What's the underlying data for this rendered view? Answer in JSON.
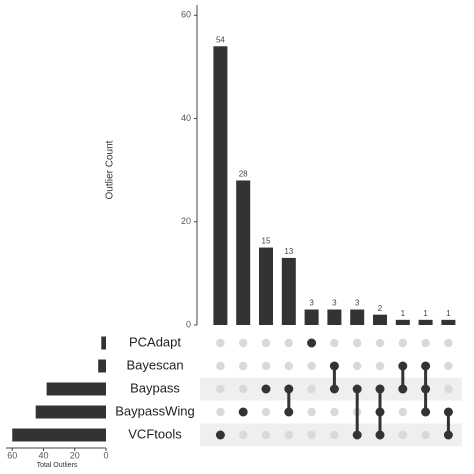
{
  "chart_data": {
    "type": "upset",
    "y_label": "Outlier Count",
    "ylim": [
      0,
      62
    ],
    "yticks": [
      0,
      20,
      40,
      60
    ],
    "color": "#333333",
    "intersections": {
      "values": [
        54,
        28,
        15,
        13,
        3,
        3,
        3,
        2,
        1,
        1,
        1
      ],
      "members": [
        [
          4
        ],
        [
          3
        ],
        [
          2
        ],
        [
          2,
          3
        ],
        [
          0
        ],
        [
          1,
          2
        ],
        [
          2,
          4
        ],
        [
          2,
          3,
          4
        ],
        [
          1,
          2
        ],
        [
          1,
          2,
          3
        ],
        [
          3,
          4
        ]
      ]
    },
    "sets": {
      "names": [
        "PCAdapt",
        "Bayescan",
        "Baypass",
        "BaypassWing",
        "VCFtools"
      ],
      "values": [
        3,
        5,
        38,
        45,
        60
      ]
    },
    "set_xlabel": "Total Outliers",
    "set_xlim": [
      0,
      64
    ],
    "set_xticks": [
      60,
      40,
      20,
      0
    ]
  }
}
